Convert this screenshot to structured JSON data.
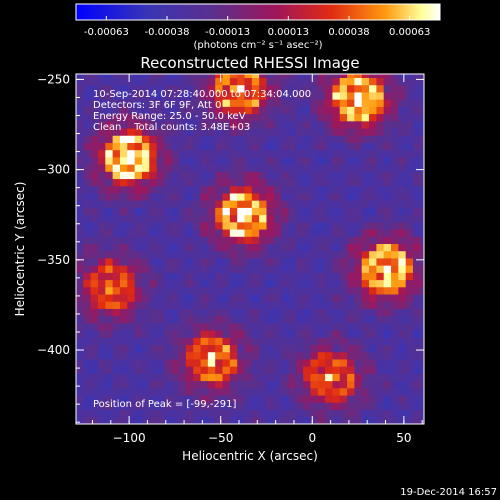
{
  "colorbar": {
    "ticks": [
      "-0.00063",
      "-0.00038",
      "-0.00013",
      "0.00013",
      "0.00038",
      "0.00063"
    ],
    "unit_label": "(photons cm⁻² s⁻¹ asec⁻²)",
    "colors": [
      "#0000ff",
      "#3a35b5",
      "#5b2f8c",
      "#a0165b",
      "#e02a12",
      "#ff9a10",
      "#ffff9a",
      "#ffffff"
    ]
  },
  "chart_data": {
    "type": "heatmap",
    "title": "Reconstructed RHESSI Image",
    "xlabel": "Heliocentric X (arcsec)",
    "ylabel": "Heliocentric Y (arcsec)",
    "xlim": [
      -129,
      61
    ],
    "ylim": [
      -441,
      -247
    ],
    "xticks": [
      -100,
      -50,
      0,
      50
    ],
    "yticks": [
      -250,
      -300,
      -350,
      -400
    ],
    "annotations": [
      "10-Sep-2014 07:28:40.000 to 07:34:04.000",
      "Detectors: 3F 6F 9F, Att 0",
      "Energy Range: 25.0 - 50.0 keV",
      "Clean    Total counts: 3.48E+03"
    ],
    "peak_label": "Position of Peak = [-99,-291]",
    "peak": [
      -99,
      -291
    ],
    "sources": [
      {
        "x": -40,
        "y": -255,
        "amp": 0.85
      },
      {
        "x": 25,
        "y": -260,
        "amp": 1.0
      },
      {
        "x": -100,
        "y": -293,
        "amp": 1.0
      },
      {
        "x": -38,
        "y": -325,
        "amp": 0.95
      },
      {
        "x": 40,
        "y": -355,
        "amp": 0.95
      },
      {
        "x": -110,
        "y": -365,
        "amp": 0.7
      },
      {
        "x": -55,
        "y": -405,
        "amp": 0.75
      },
      {
        "x": 10,
        "y": -415,
        "amp": 0.7
      }
    ],
    "vmin": -0.00063,
    "vmax": 0.00063
  },
  "timestamp": "19-Dec-2014 16:57"
}
